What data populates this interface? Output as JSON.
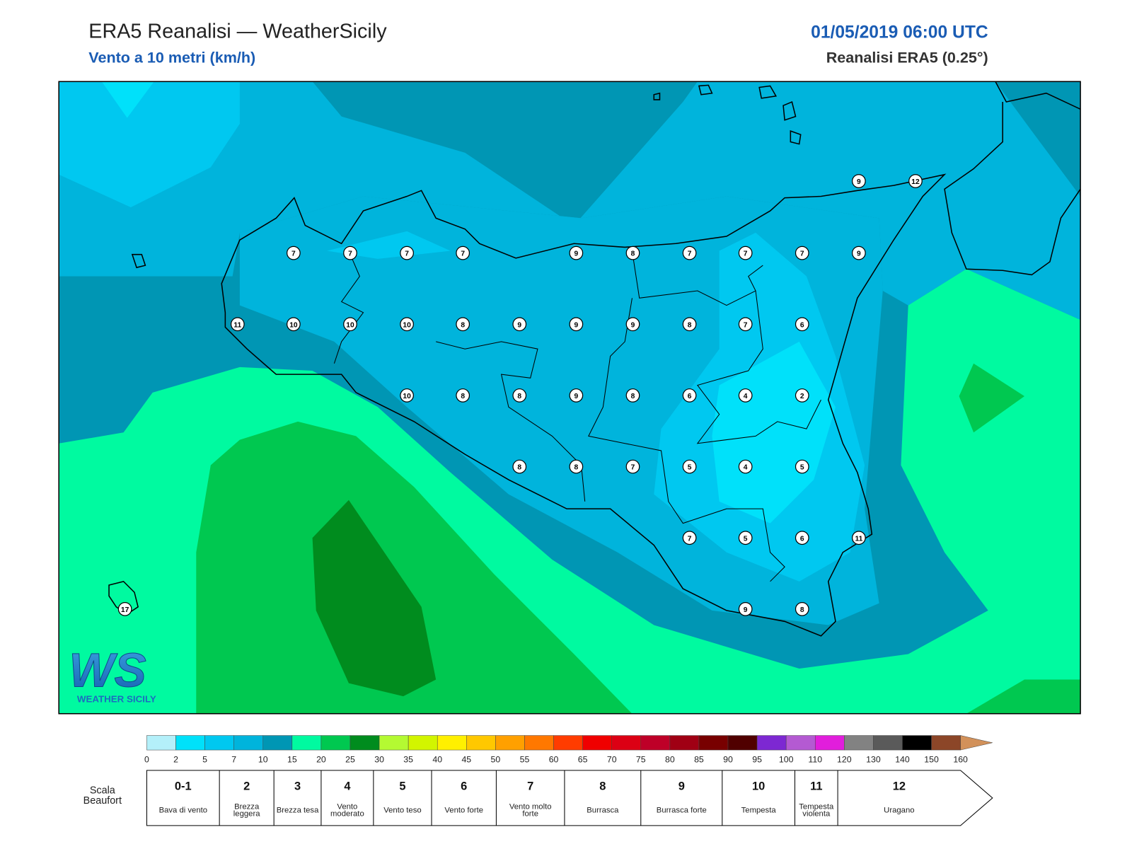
{
  "header": {
    "title": "ERA5 Reanalisi — WeatherSicily",
    "subtitle": "Vento a 10 metri (km/h)",
    "datetime": "01/05/2019 06:00 UTC",
    "source": "Reanalisi ERA5 (0.25°)"
  },
  "map": {
    "stations": [
      12,
      9,
      7,
      7,
      7,
      7,
      9,
      8,
      7,
      7,
      7,
      9,
      11,
      10,
      10,
      10,
      8,
      9,
      9,
      9,
      8,
      7,
      6,
      10,
      8,
      8,
      9,
      8,
      6,
      4,
      2,
      8,
      8,
      7,
      5,
      4,
      5,
      7,
      5,
      6,
      11,
      9,
      8,
      17
    ]
  },
  "logo": {
    "mark": "WS",
    "name": "WEATHER SICILY"
  },
  "colorbar": {
    "ticks": [
      0,
      2,
      5,
      7,
      10,
      15,
      20,
      25,
      30,
      35,
      40,
      45,
      50,
      55,
      60,
      65,
      70,
      75,
      80,
      85,
      90,
      95,
      100,
      110,
      120,
      130,
      140,
      150,
      160
    ],
    "colors": [
      "#b4f0fa",
      "#00e1fa",
      "#00c8f0",
      "#00b4dc",
      "#0096b4",
      "#00faa0",
      "#00c850",
      "#008c1e",
      "#b4fa32",
      "#d2f500",
      "#fff000",
      "#ffc800",
      "#ffa000",
      "#ff7800",
      "#ff3c00",
      "#f00000",
      "#dc0014",
      "#be0028",
      "#a00014",
      "#780000",
      "#500000",
      "#7d28d2",
      "#b45ad2",
      "#e11edc",
      "#828282",
      "#5a5a5a",
      "#000000",
      "#8c4628",
      "#d2915a"
    ]
  },
  "beaufort": {
    "label": "Scala Beaufort",
    "levels": [
      {
        "force": "0-1",
        "name": "Bava di vento"
      },
      {
        "force": 2,
        "name": "Brezza leggera"
      },
      {
        "force": 3,
        "name": "Brezza tesa"
      },
      {
        "force": 4,
        "name": "Vento moderato"
      },
      {
        "force": 5,
        "name": "Vento teso"
      },
      {
        "force": 6,
        "name": "Vento forte"
      },
      {
        "force": 7,
        "name": "Vento molto forte"
      },
      {
        "force": 8,
        "name": "Burrasca"
      },
      {
        "force": 9,
        "name": "Burrasca forte"
      },
      {
        "force": 10,
        "name": "Tempesta"
      },
      {
        "force": 11,
        "name": "Tempesta violenta"
      },
      {
        "force": 12,
        "name": "Uragano"
      }
    ]
  }
}
